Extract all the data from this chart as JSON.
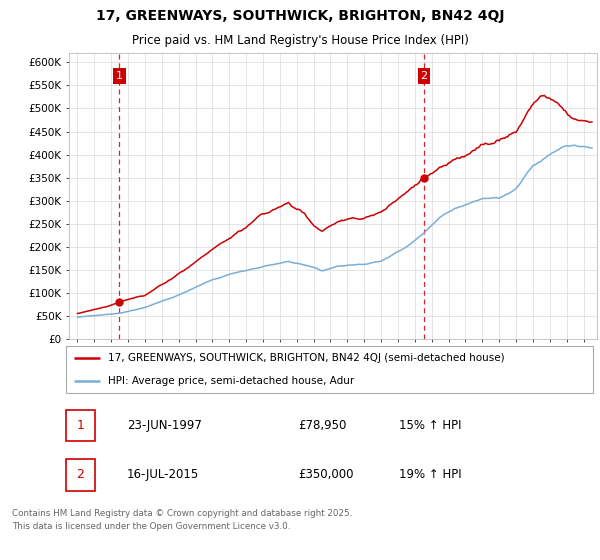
{
  "title_line1": "17, GREENWAYS, SOUTHWICK, BRIGHTON, BN42 4QJ",
  "title_line2": "Price paid vs. HM Land Registry's House Price Index (HPI)",
  "legend_label1": "17, GREENWAYS, SOUTHWICK, BRIGHTON, BN42 4QJ (semi-detached house)",
  "legend_label2": "HPI: Average price, semi-detached house, Adur",
  "annotation1_label": "1",
  "annotation1_date": "23-JUN-1997",
  "annotation1_price": "£78,950",
  "annotation1_hpi": "15% ↑ HPI",
  "annotation2_label": "2",
  "annotation2_date": "16-JUL-2015",
  "annotation2_price": "£350,000",
  "annotation2_hpi": "19% ↑ HPI",
  "footer": "Contains HM Land Registry data © Crown copyright and database right 2025.\nThis data is licensed under the Open Government Licence v3.0.",
  "line1_color": "#cc0000",
  "line2_color": "#7aaed6",
  "vline_color": "#cc0000",
  "ylim": [
    0,
    620000
  ],
  "yticks": [
    0,
    50000,
    100000,
    150000,
    200000,
    250000,
    300000,
    350000,
    400000,
    450000,
    500000,
    550000,
    600000
  ],
  "ytick_labels": [
    "£0",
    "£50K",
    "£100K",
    "£150K",
    "£200K",
    "£250K",
    "£300K",
    "£350K",
    "£400K",
    "£450K",
    "£500K",
    "£550K",
    "£600K"
  ],
  "xlim_start": 1994.5,
  "xlim_end": 2025.8,
  "purchase1_x": 1997.48,
  "purchase1_y": 78950,
  "purchase2_x": 2015.54,
  "purchase2_y": 350000,
  "vline1_x": 1997.48,
  "vline2_x": 2015.54,
  "annotation_box_color": "#cc0000",
  "annotation_text_color": "#cc0000",
  "bg_color": "#ffffff",
  "grid_color": "#e0e0e0"
}
